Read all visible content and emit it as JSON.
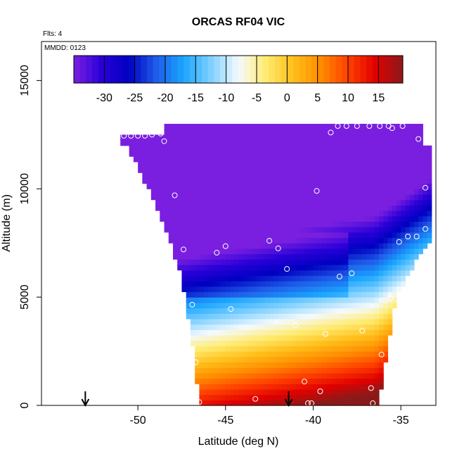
{
  "chart_data": {
    "type": "heatmap",
    "title": "ORCAS RF04 VIC",
    "annotations": {
      "flights": "Flts: 4",
      "mmdd": "MMDD: 0123"
    },
    "xlabel": "Latitude (deg N)",
    "ylabel": "Altitude (m)",
    "xlim": [
      -55.5,
      -33.0
    ],
    "ylim": [
      0,
      16800
    ],
    "x_ticks": [
      -50,
      -45,
      -40,
      -35
    ],
    "y_ticks": [
      0,
      5000,
      10000,
      15000
    ],
    "x_tick_labels": [
      "-50",
      "-45",
      "-40",
      "-35"
    ],
    "y_tick_labels": [
      "0",
      "5000",
      "10000",
      "15000"
    ],
    "colorbar": {
      "min": -35,
      "max": 19,
      "ticks": [
        -30,
        -25,
        -20,
        -15,
        -10,
        -5,
        0,
        5,
        10,
        15
      ],
      "tick_labels": [
        "-30",
        "-25",
        "-20",
        "-15",
        "-10",
        "-5",
        "0",
        "5",
        "10",
        "15"
      ],
      "colors": [
        "#7a1fe0",
        "#2a00d8",
        "#0000c0",
        "#1f5ce8",
        "#1aa5ff",
        "#7fd0ff",
        "#f4faff",
        "#ffeb70",
        "#ffbf1a",
        "#ff8c00",
        "#ff4000",
        "#e00000",
        "#8a1a1a"
      ]
    },
    "flight_markers_x": [
      -53.0,
      -41.4
    ],
    "observations": [
      [
        -50.8,
        12450
      ],
      [
        -50.4,
        12450
      ],
      [
        -50.0,
        12450
      ],
      [
        -49.6,
        12450
      ],
      [
        -49.2,
        12500
      ],
      [
        -48.7,
        12550
      ],
      [
        -48.5,
        12200
      ],
      [
        -47.9,
        9700
      ],
      [
        -47.4,
        7200
      ],
      [
        -46.9,
        4650
      ],
      [
        -46.5,
        150
      ],
      [
        -46.7,
        2000
      ],
      [
        -45.5,
        7050
      ],
      [
        -45.0,
        7350
      ],
      [
        -44.7,
        4450
      ],
      [
        -43.3,
        300
      ],
      [
        -42.5,
        7600
      ],
      [
        -42.0,
        7250
      ],
      [
        -41.5,
        6300
      ],
      [
        -41.0,
        3700
      ],
      [
        -40.5,
        1100
      ],
      [
        -40.3,
        100
      ],
      [
        -40.1,
        100
      ],
      [
        -39.8,
        9900
      ],
      [
        -39.6,
        650
      ],
      [
        -39.3,
        3300
      ],
      [
        -39.0,
        12600
      ],
      [
        -38.6,
        12900
      ],
      [
        -38.5,
        5950
      ],
      [
        -38.1,
        12900
      ],
      [
        -37.8,
        6100
      ],
      [
        -37.5,
        12900
      ],
      [
        -37.2,
        3450
      ],
      [
        -36.8,
        12900
      ],
      [
        -36.7,
        800
      ],
      [
        -36.6,
        100
      ],
      [
        -36.2,
        12900
      ],
      [
        -36.1,
        2350
      ],
      [
        -35.7,
        12900
      ],
      [
        -35.6,
        4950
      ],
      [
        -35.5,
        12800
      ],
      [
        -35.1,
        7550
      ],
      [
        -34.9,
        12900
      ],
      [
        -34.6,
        7800
      ],
      [
        -34.1,
        7800
      ],
      [
        -34.0,
        12300
      ],
      [
        -33.6,
        10050
      ],
      [
        -33.6,
        8150
      ]
    ]
  }
}
